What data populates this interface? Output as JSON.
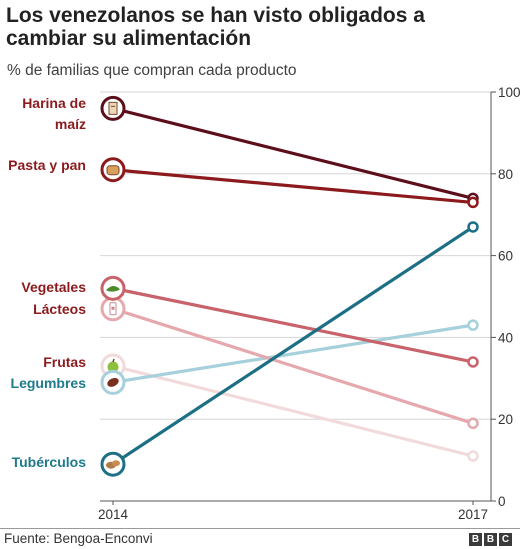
{
  "title": "Los venezolanos se han visto obligados a cambiar su alimentación",
  "subtitle": "% de familias que compran cada producto",
  "source": "Fuente: Bengoa-Enconvi",
  "logo": [
    "B",
    "B",
    "C"
  ],
  "chart_data": {
    "type": "line",
    "x": [
      "2014",
      "2017"
    ],
    "ylim": [
      0,
      100
    ],
    "yticks": [
      0,
      20,
      40,
      60,
      80,
      100
    ],
    "grid": true,
    "series": [
      {
        "name": "Harina de maíz",
        "values": [
          96,
          74
        ],
        "color": "#5c0f1b",
        "label_color": "#8c1a1d",
        "icon": "corn-flour-icon"
      },
      {
        "name": "Pasta y pan",
        "values": [
          81,
          73
        ],
        "color": "#8c1a1d",
        "label_color": "#8c1a1d",
        "icon": "bread-icon"
      },
      {
        "name": "Vegetales",
        "values": [
          52,
          34
        ],
        "color": "#c9636b",
        "label_color": "#8c1a1d",
        "icon": "vegetable-icon"
      },
      {
        "name": "Lácteos",
        "values": [
          47,
          19
        ],
        "color": "#e5a8ad",
        "label_color": "#8c1a1d",
        "icon": "milk-icon"
      },
      {
        "name": "Frutas",
        "values": [
          33,
          11
        ],
        "color": "#f1dadc",
        "label_color": "#8c1a1d",
        "icon": "apple-icon"
      },
      {
        "name": "Legumbres",
        "values": [
          29,
          43
        ],
        "color": "#a6d0dc",
        "label_color": "#1e7a8c",
        "icon": "bean-icon"
      },
      {
        "name": "Tubérculos",
        "values": [
          9,
          67
        ],
        "color": "#1d6f85",
        "label_color": "#1e7a8c",
        "icon": "potato-icon"
      }
    ]
  }
}
